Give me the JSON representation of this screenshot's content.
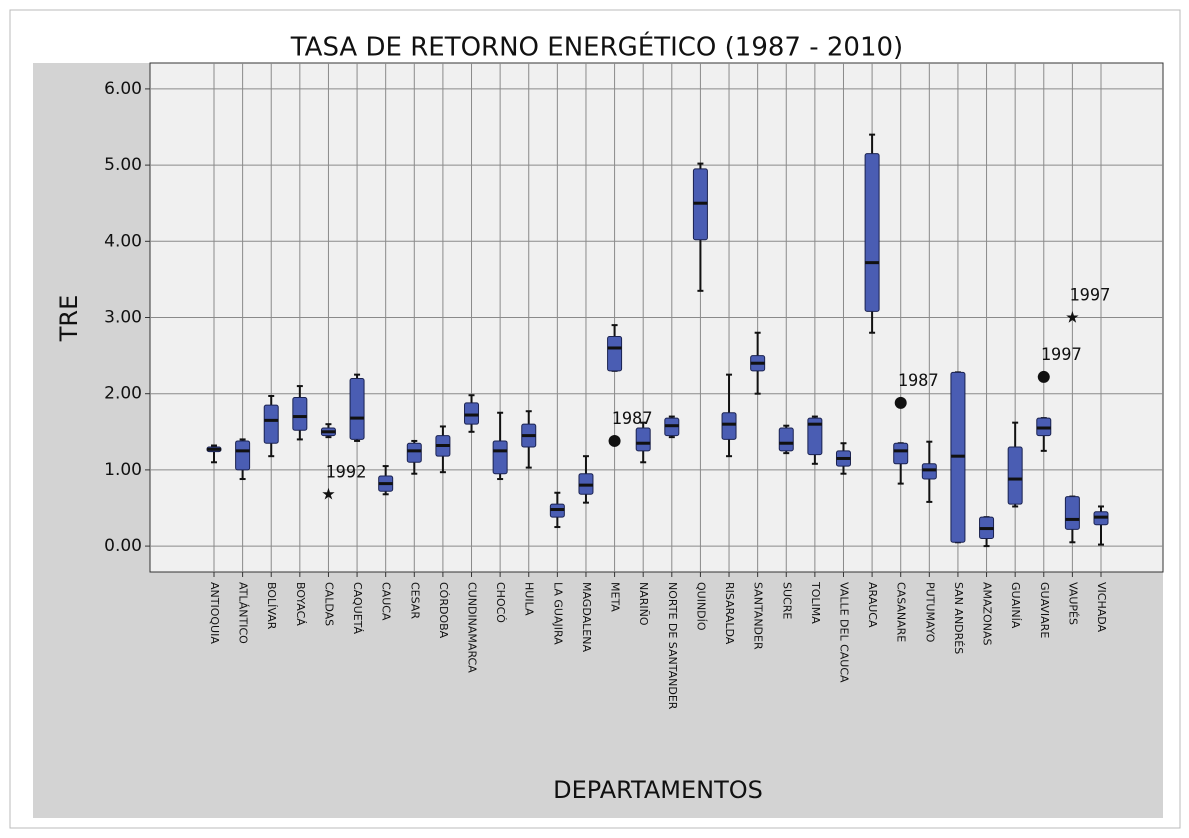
{
  "chart_data": {
    "type": "box",
    "title": "TASA DE RETORNO ENERGÉTICO (1987 - 2010)",
    "x_label": "DEPARTAMENTOS",
    "y_label": "TRE",
    "categories": [
      "ANTIOQUIA",
      "ATLÁNTICO",
      "BOLÍVAR",
      "BOYACÁ",
      "CALDAS",
      "CAQUETÁ",
      "CAUCA",
      "CESAR",
      "CÓRDOBA",
      "CUNDINAMARCA",
      "CHOCÓ",
      "HUILA",
      "LA GUAJIRA",
      "MAGDALENA",
      "META",
      "NARIÑO",
      "NORTE DE SANTANDER",
      "QUINDÍO",
      "RISARALDA",
      "SANTANDER",
      "SUCRE",
      "TOLIMA",
      "VALLE DEL CAUCA",
      "ARAUCA",
      "CASANARE",
      "PUTUMAYO",
      "SAN ANDRÉS",
      "AMAZONAS",
      "GUAINÍA",
      "GUAVIARE",
      "VAUPÉS",
      "VICHADA"
    ],
    "boxes": [
      {
        "low": 1.1,
        "q1": 1.24,
        "median": 1.27,
        "q3": 1.3,
        "high": 1.32
      },
      {
        "low": 0.88,
        "q1": 1.0,
        "median": 1.25,
        "q3": 1.38,
        "high": 1.4
      },
      {
        "low": 1.18,
        "q1": 1.35,
        "median": 1.65,
        "q3": 1.85,
        "high": 1.97
      },
      {
        "low": 1.4,
        "q1": 1.52,
        "median": 1.7,
        "q3": 1.95,
        "high": 2.1
      },
      {
        "low": 1.43,
        "q1": 1.45,
        "median": 1.5,
        "q3": 1.55,
        "high": 1.6
      },
      {
        "low": 1.38,
        "q1": 1.4,
        "median": 1.68,
        "q3": 2.2,
        "high": 2.25
      },
      {
        "low": 0.68,
        "q1": 0.72,
        "median": 0.82,
        "q3": 0.92,
        "high": 1.05
      },
      {
        "low": 0.95,
        "q1": 1.1,
        "median": 1.25,
        "q3": 1.35,
        "high": 1.38
      },
      {
        "low": 0.97,
        "q1": 1.18,
        "median": 1.32,
        "q3": 1.45,
        "high": 1.57
      },
      {
        "low": 1.5,
        "q1": 1.6,
        "median": 1.72,
        "q3": 1.88,
        "high": 1.98
      },
      {
        "low": 0.88,
        "q1": 0.95,
        "median": 1.25,
        "q3": 1.38,
        "high": 1.75
      },
      {
        "low": 1.03,
        "q1": 1.3,
        "median": 1.45,
        "q3": 1.6,
        "high": 1.77
      },
      {
        "low": 0.25,
        "q1": 0.38,
        "median": 0.48,
        "q3": 0.55,
        "high": 0.7
      },
      {
        "low": 0.57,
        "q1": 0.68,
        "median": 0.8,
        "q3": 0.95,
        "high": 1.18
      },
      {
        "low": 2.3,
        "q1": 2.3,
        "median": 2.6,
        "q3": 2.75,
        "high": 2.9
      },
      {
        "low": 1.1,
        "q1": 1.25,
        "median": 1.35,
        "q3": 1.55,
        "high": 1.62
      },
      {
        "low": 1.43,
        "q1": 1.45,
        "median": 1.58,
        "q3": 1.68,
        "high": 1.7
      },
      {
        "low": 3.35,
        "q1": 4.02,
        "median": 4.5,
        "q3": 4.95,
        "high": 5.02
      },
      {
        "low": 1.18,
        "q1": 1.4,
        "median": 1.6,
        "q3": 1.75,
        "high": 2.25
      },
      {
        "low": 2.0,
        "q1": 2.3,
        "median": 2.4,
        "q3": 2.5,
        "high": 2.8
      },
      {
        "low": 1.22,
        "q1": 1.25,
        "median": 1.35,
        "q3": 1.55,
        "high": 1.58
      },
      {
        "low": 1.08,
        "q1": 1.2,
        "median": 1.6,
        "q3": 1.68,
        "high": 1.7
      },
      {
        "low": 0.95,
        "q1": 1.05,
        "median": 1.15,
        "q3": 1.25,
        "high": 1.35
      },
      {
        "low": 2.8,
        "q1": 3.08,
        "median": 3.72,
        "q3": 5.15,
        "high": 5.4
      },
      {
        "low": 0.82,
        "q1": 1.08,
        "median": 1.25,
        "q3": 1.35,
        "high": 1.35
      },
      {
        "low": 0.58,
        "q1": 0.88,
        "median": 1.0,
        "q3": 1.08,
        "high": 1.37
      },
      {
        "low": 0.05,
        "q1": 0.05,
        "median": 1.18,
        "q3": 2.28,
        "high": 2.28
      },
      {
        "low": 0.0,
        "q1": 0.1,
        "median": 0.23,
        "q3": 0.38,
        "high": 0.38
      },
      {
        "low": 0.52,
        "q1": 0.55,
        "median": 0.88,
        "q3": 1.3,
        "high": 1.62
      },
      {
        "low": 1.25,
        "q1": 1.45,
        "median": 1.55,
        "q3": 1.68,
        "high": 1.68
      },
      {
        "low": 0.05,
        "q1": 0.22,
        "median": 0.35,
        "q3": 0.65,
        "high": 0.65
      },
      {
        "low": 0.02,
        "q1": 0.28,
        "median": 0.38,
        "q3": 0.45,
        "high": 0.52
      }
    ],
    "outliers": [
      {
        "category": "CALDAS",
        "value": 0.68,
        "label": "1992",
        "marker": "star"
      },
      {
        "category": "META",
        "value": 1.38,
        "label": "1987",
        "marker": "circle"
      },
      {
        "category": "CASANARE",
        "value": 1.88,
        "label": "1987",
        "marker": "circle"
      },
      {
        "category": "GUAVIARE",
        "value": 2.22,
        "label": "1997",
        "marker": "circle"
      },
      {
        "category": "VAUPÉS",
        "value": 3.0,
        "label": "1997",
        "marker": "star"
      }
    ],
    "color": "#4a5db3",
    "ylim": [
      -0.34,
      6.34
    ],
    "yticks": [
      {
        "value": 0,
        "label": "0.00"
      },
      {
        "value": 1,
        "label": "1.00"
      },
      {
        "value": 2,
        "label": "2.00"
      },
      {
        "value": 3,
        "label": "3.00"
      },
      {
        "value": 4,
        "label": "4.00"
      },
      {
        "value": 5,
        "label": "5.00"
      },
      {
        "value": 6,
        "label": "6.00"
      }
    ],
    "grid": true
  }
}
